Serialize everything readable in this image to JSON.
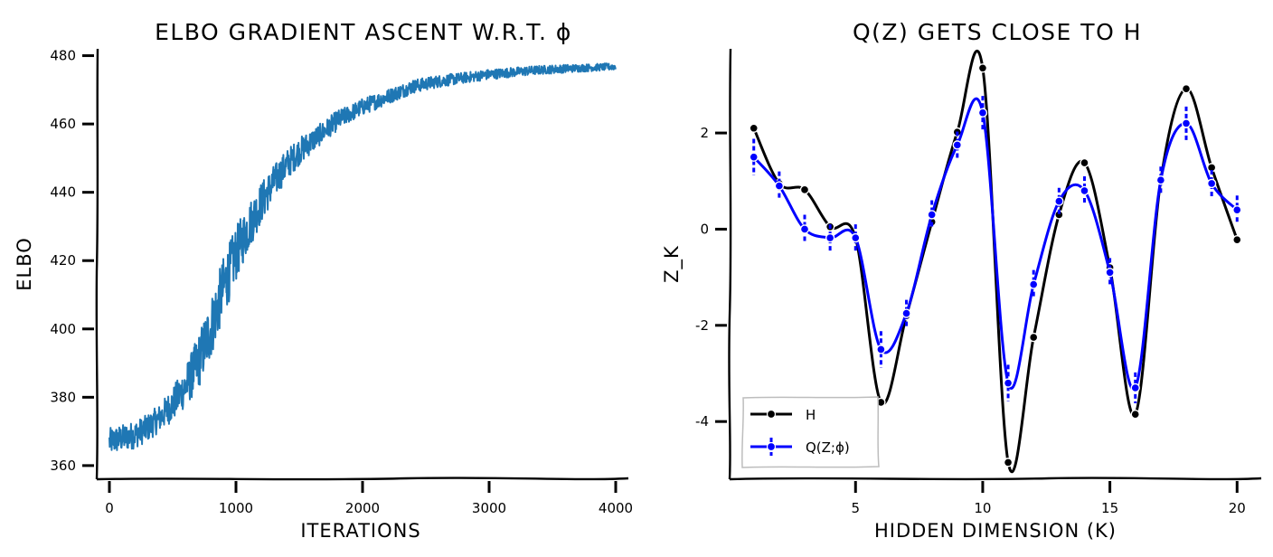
{
  "chart_data": [
    {
      "type": "line",
      "title": "ELBO GRADIENT ASCENT W.R.T. ϕ",
      "xlabel": "ITERATIONS",
      "ylabel": "ELBO",
      "xlim": [
        -100,
        4100
      ],
      "ylim": [
        356,
        482
      ],
      "xticks": [
        0,
        1000,
        2000,
        3000,
        4000
      ],
      "yticks": [
        360,
        380,
        400,
        420,
        440,
        460,
        480
      ],
      "xtick_labels": [
        "0",
        "1000",
        "2000",
        "3000",
        "4000"
      ],
      "ytick_labels": [
        "360",
        "380",
        "400",
        "420",
        "440",
        "460",
        "480"
      ],
      "color": "#1f77b4",
      "series": [
        {
          "x": [
            0,
            100,
            200,
            300,
            400,
            500,
            600,
            700,
            800,
            900,
            1000,
            1100,
            1200,
            1300,
            1400,
            1500,
            1600,
            1700,
            1800,
            1900,
            2000,
            2200,
            2400,
            2600,
            2800,
            3000,
            3200,
            3400,
            3600,
            3800,
            4000
          ],
          "values": [
            367,
            368,
            369,
            371,
            374,
            378,
            383,
            390,
            400,
            412,
            422,
            430,
            437,
            443,
            448,
            452,
            455,
            458,
            461,
            463,
            465,
            468,
            471,
            472.5,
            473.5,
            474.5,
            475.2,
            475.8,
            476.2,
            476.5,
            476.8
          ],
          "noise": [
            4,
            4,
            4,
            4,
            4,
            5,
            6,
            8,
            9,
            9,
            8,
            7,
            6,
            5,
            4.5,
            4,
            3.5,
            3,
            3,
            2.5,
            2.5,
            2.2,
            2,
            1.8,
            1.6,
            1.5,
            1.4,
            1.3,
            1.2,
            1.1,
            1
          ]
        }
      ]
    },
    {
      "type": "line",
      "title": "Q(Z) GETS CLOSE TO H",
      "xlabel": "HIDDEN DIMENSION (K)",
      "ylabel": "Z_K",
      "xlim": [
        0.05,
        20.95
      ],
      "ylim": [
        -5.2,
        3.75
      ],
      "xticks": [
        5,
        10,
        15,
        20
      ],
      "yticks": [
        -4,
        -2,
        0,
        2
      ],
      "xtick_labels": [
        "5",
        "10",
        "15",
        "20"
      ],
      "ytick_labels": [
        "-4",
        "-2",
        "0",
        "2"
      ],
      "legend": "lower-left",
      "x": [
        1,
        2,
        3,
        4,
        5,
        6,
        7,
        8,
        9,
        10,
        11,
        12,
        13,
        14,
        15,
        16,
        17,
        18,
        19,
        20
      ],
      "series": [
        {
          "name": "H",
          "color": "#000000",
          "values": [
            2.1,
            0.95,
            0.82,
            0.05,
            -0.18,
            -3.6,
            -1.8,
            0.15,
            2.02,
            3.35,
            -4.85,
            -2.25,
            0.3,
            1.38,
            -0.8,
            -3.85,
            1.02,
            2.92,
            1.28,
            -0.22
          ]
        },
        {
          "name": "Q(Z;ϕ)",
          "color": "#0000ff",
          "values": [
            1.5,
            0.9,
            0.0,
            -0.18,
            -0.18,
            -2.5,
            -1.75,
            0.3,
            1.75,
            2.42,
            -3.2,
            -1.15,
            0.58,
            0.8,
            -0.9,
            -3.3,
            1.02,
            2.2,
            0.95,
            0.4
          ],
          "error": [
            0.38,
            0.3,
            0.3,
            0.28,
            0.28,
            0.38,
            0.28,
            0.3,
            0.28,
            0.35,
            0.38,
            0.3,
            0.28,
            0.3,
            0.3,
            0.32,
            0.28,
            0.35,
            0.28,
            0.3
          ]
        }
      ]
    }
  ]
}
